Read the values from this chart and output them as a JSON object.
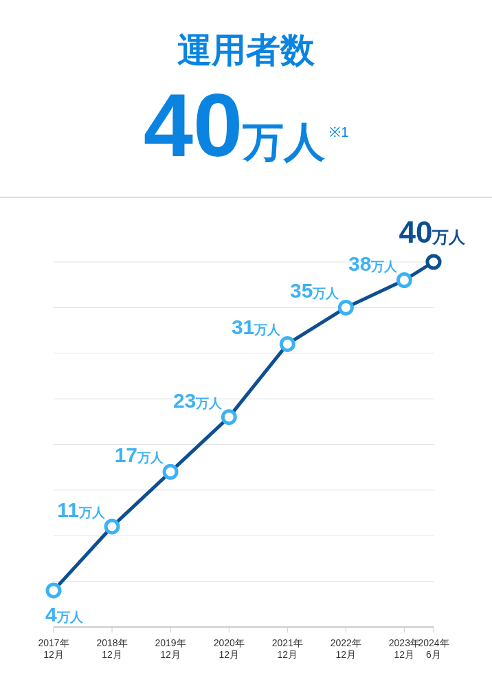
{
  "chart_data": {
    "type": "line",
    "title": "運用者数",
    "subtitle": "40万人$^{※1}$",
    "x": [
      "2017-12",
      "2018-12",
      "2019-12",
      "2020-12",
      "2021-12",
      "2022-12",
      "2023-12",
      "2024-06"
    ],
    "series": [
      {
        "color": "#0d4f91",
        "values": [
          4,
          11,
          17,
          23,
          31,
          35,
          38,
          40
        ],
        "colors": [
          "#3cb2f5",
          "#3cb2f5",
          "#3cb2f5",
          "#3cb2f5",
          "#3cb2f5",
          "#3cb2f5",
          "#3cb2f5",
          "#0d4f91"
        ],
        "value_labels": [
          "4万人",
          "11万人",
          "17万人",
          "23万人",
          "31万人",
          "35万人",
          "38万人",
          "40万人"
        ]
      }
    ],
    "xlim": [
      "2017-12",
      "2024-06"
    ],
    "xticks": [
      {
        "value": "2017-12",
        "label": "2017年\n12月"
      },
      {
        "value": "2018-12",
        "label": "2018年\n12月"
      },
      {
        "value": "2019-12",
        "label": "2019年\n12月"
      },
      {
        "value": "2020-12",
        "label": "2020年\n12月"
      },
      {
        "value": "2021-12",
        "label": "2021年\n12月"
      },
      {
        "value": "2022-12",
        "label": "2022年\n12月"
      },
      {
        "value": "2023-12",
        "label": "2023年\n12月"
      },
      {
        "value": "2024-06",
        "label": "2024年\n6月"
      }
    ],
    "grid": "y",
    "marker": "circle",
    "line_style": "solid",
    "legend": false
  }
}
